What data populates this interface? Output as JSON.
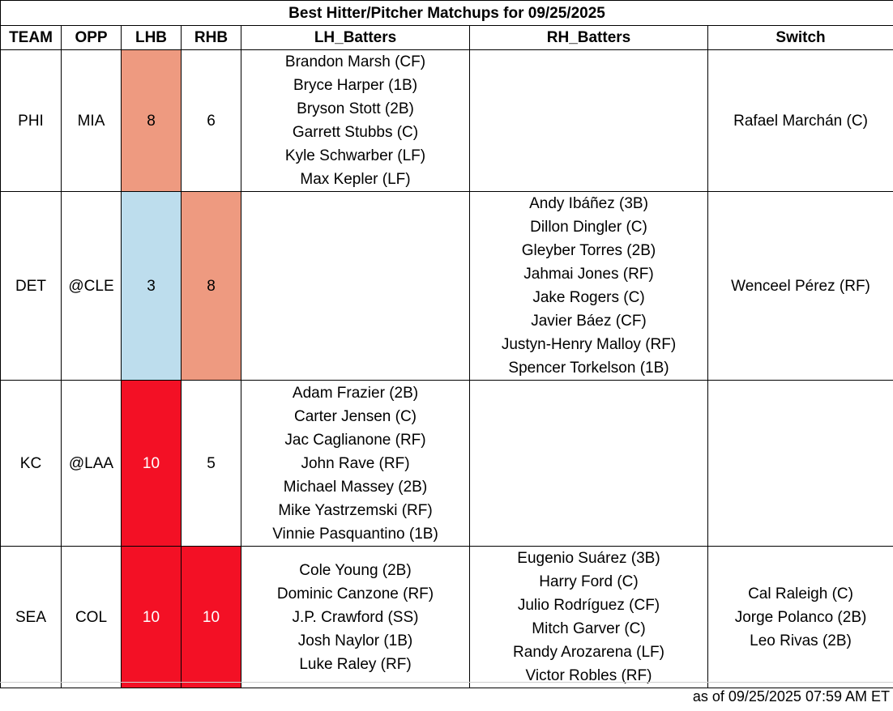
{
  "title": "Best Hitter/Pitcher Matchups for 09/25/2025",
  "headers": [
    "TEAM",
    "OPP",
    "LHB",
    "RHB",
    "LH_Batters",
    "RH_Batters",
    "Switch"
  ],
  "colors": {
    "light_red": "#EE9A80",
    "light_blue": "#BDDDED",
    "red": "#F31025"
  },
  "rows": [
    {
      "team": "PHI",
      "opp": "MIA",
      "lhb": "8",
      "lhb_color": "#EE9A80",
      "rhb": "6",
      "rhb_color": "#FFFFFF",
      "lh_batters": [
        "Brandon Marsh (CF)",
        "Bryce Harper (1B)",
        "Bryson Stott (2B)",
        "Garrett Stubbs (C)",
        "Kyle Schwarber (LF)",
        "Max Kepler (LF)"
      ],
      "rh_batters": [],
      "switch": [
        "Rafael Marchán (C)"
      ]
    },
    {
      "team": "DET",
      "opp": "@CLE",
      "lhb": "3",
      "lhb_color": "#BDDDED",
      "rhb": "8",
      "rhb_color": "#EE9A80",
      "lh_batters": [],
      "rh_batters": [
        "Andy Ibáñez (3B)",
        "Dillon Dingler (C)",
        "Gleyber Torres (2B)",
        "Jahmai Jones (RF)",
        "Jake Rogers (C)",
        "Javier Báez (CF)",
        "Justyn-Henry Malloy (RF)",
        "Spencer Torkelson (1B)"
      ],
      "switch": [
        "Wenceel Pérez (RF)"
      ]
    },
    {
      "team": "KC",
      "opp": "@LAA",
      "lhb": "10",
      "lhb_color": "#F31025",
      "rhb": "5",
      "rhb_color": "#FFFFFF",
      "lh_batters": [
        "Adam Frazier (2B)",
        "Carter Jensen (C)",
        "Jac Caglianone (RF)",
        "John Rave (RF)",
        "Michael Massey (2B)",
        "Mike Yastrzemski (RF)",
        "Vinnie Pasquantino (1B)"
      ],
      "rh_batters": [],
      "switch": []
    },
    {
      "team": "SEA",
      "opp": "COL",
      "lhb": "10",
      "lhb_color": "#F31025",
      "rhb": "10",
      "rhb_color": "#F31025",
      "lh_batters": [
        "Cole Young (2B)",
        "Dominic Canzone (RF)",
        "J.P. Crawford (SS)",
        "Josh Naylor (1B)",
        "Luke Raley (RF)"
      ],
      "rh_batters": [
        "Eugenio Suárez (3B)",
        "Harry Ford (C)",
        "Julio Rodríguez (CF)",
        "Mitch Garver (C)",
        "Randy Arozarena (LF)",
        "Victor Robles (RF)"
      ],
      "switch": [
        "Cal Raleigh (C)",
        "Jorge Polanco (2B)",
        "Leo Rivas (2B)"
      ]
    }
  ],
  "footer": "as of 09/25/2025 07:59 AM ET"
}
